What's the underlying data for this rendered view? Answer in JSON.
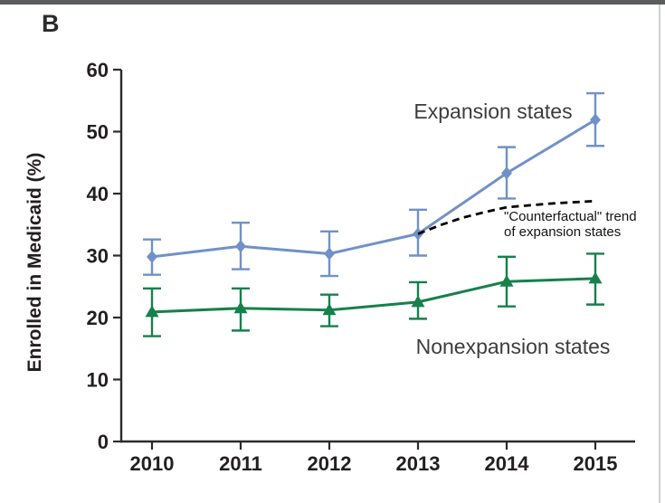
{
  "panel": {
    "label": "B"
  },
  "colors": {
    "expansion_blue": "#7191c7",
    "nonexpansion_green": "#17804c",
    "counterfactual_black": "#000000",
    "axis": "#2b2b2b",
    "top_bar": "#5b5c5e",
    "right_edge": "#cfcfcf"
  },
  "chart_data": {
    "type": "line",
    "title": "",
    "xlabel": "",
    "ylabel": "Enrolled in Medicaid (%)",
    "ylim": [
      0,
      60
    ],
    "yticks": [
      0,
      10,
      20,
      30,
      40,
      50,
      60
    ],
    "x": [
      2010,
      2011,
      2012,
      2013,
      2014,
      2015
    ],
    "grid": false,
    "legend_position": "inline-annotations",
    "series": [
      {
        "name": "Expansion states",
        "color": "#7191c7",
        "marker": "diamond",
        "values": [
          29.8,
          31.5,
          30.3,
          33.5,
          43.3,
          51.9
        ],
        "ci_low": [
          26.9,
          27.8,
          26.7,
          30.0,
          39.2,
          47.7
        ],
        "ci_high": [
          32.6,
          35.3,
          33.9,
          37.4,
          47.5,
          56.2
        ]
      },
      {
        "name": "Nonexpansion states",
        "color": "#17804c",
        "marker": "triangle",
        "values": [
          20.9,
          21.5,
          21.2,
          22.5,
          25.8,
          26.3
        ],
        "ci_low": [
          17.0,
          17.9,
          18.6,
          19.8,
          21.8,
          22.1
        ],
        "ci_high": [
          24.7,
          24.7,
          23.7,
          25.7,
          29.8,
          30.3
        ]
      }
    ],
    "counterfactual": {
      "label_line1": "\"Counterfactual\" trend",
      "label_line2": "of expansion states",
      "color": "#000000",
      "style": "dashed",
      "x": [
        2013,
        2013.25,
        2013.5,
        2013.75,
        2014,
        2014.5,
        2015
      ],
      "values": [
        33.5,
        34.9,
        36.1,
        37.0,
        37.8,
        38.4,
        38.8
      ]
    }
  }
}
